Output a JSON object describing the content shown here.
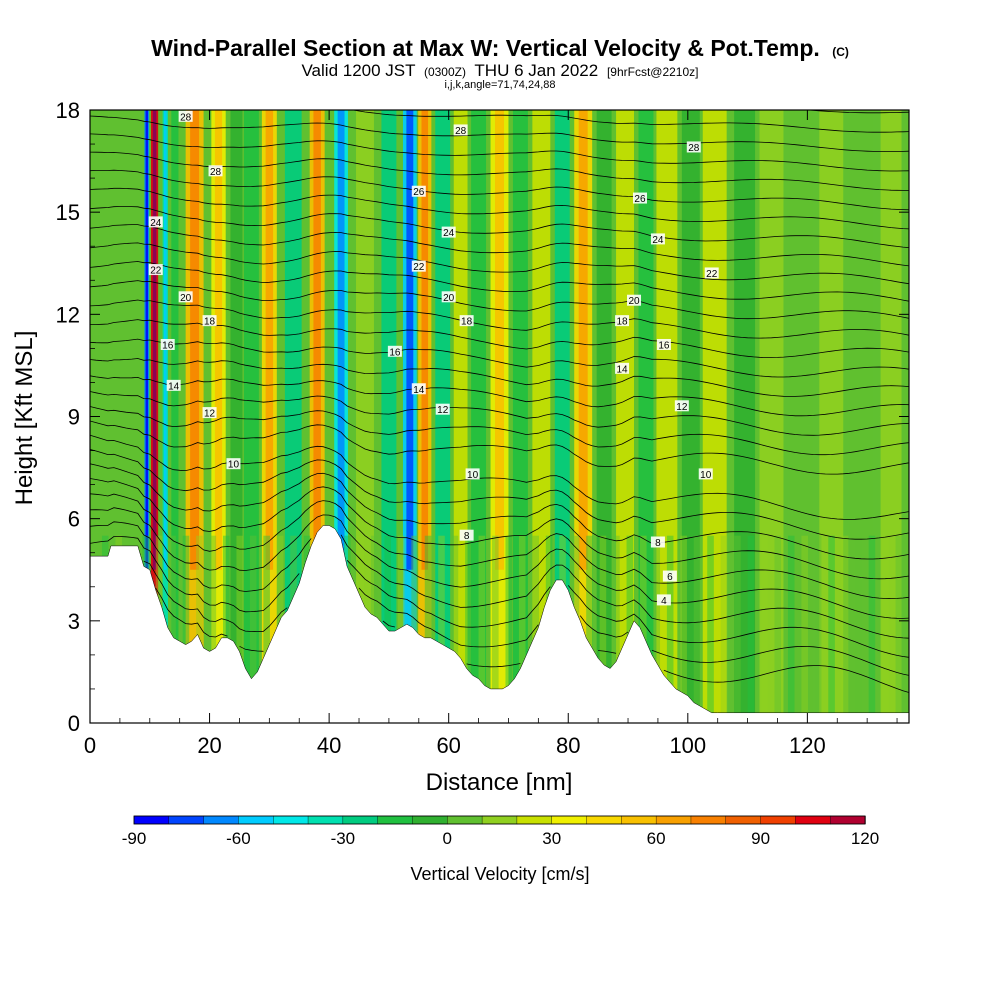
{
  "chart_data": {
    "type": "heatmap",
    "title": "Wind-Parallel Section at Max W: Vertical Velocity & Pot.Temp.",
    "title_suffix": "(C)",
    "subtitle_main": "Valid 1200 JST",
    "subtitle_utc": "(0300Z)",
    "subtitle_date": "THU 6 Jan 2022",
    "subtitle_fcst": "[9hrFcst@2210z]",
    "subtitle_line3": "i,j,k,angle=71,74,24,88",
    "xlabel": "Distance [nm]",
    "ylabel": "Height [Kft MSL]",
    "xlim": [
      0,
      137
    ],
    "ylim": [
      0,
      18
    ],
    "x_ticks": [
      0,
      20,
      40,
      60,
      80,
      100,
      120
    ],
    "x_tick_labels": [
      "0",
      "20",
      "40",
      "60",
      "80",
      "100",
      "120"
    ],
    "y_ticks": [
      0,
      3,
      6,
      9,
      12,
      15,
      18
    ],
    "y_tick_labels": [
      "0",
      "3",
      "6",
      "9",
      "12",
      "15",
      "18"
    ],
    "colorbar": {
      "title": "Vertical Velocity [cm/s]",
      "min": -90,
      "max": 120,
      "step": 10,
      "tick_values": [
        -90,
        -60,
        -30,
        0,
        30,
        60,
        90,
        120
      ],
      "tick_labels": [
        "-90",
        "-60",
        "-30",
        "0",
        "30",
        "60",
        "90",
        "120"
      ],
      "colors": [
        "#0000ff",
        "#0044ff",
        "#0088ff",
        "#00ccff",
        "#00e8e8",
        "#00e0b0",
        "#00cc80",
        "#20c040",
        "#30b030",
        "#60c030",
        "#90d020",
        "#c8e000",
        "#f0f000",
        "#f8d800",
        "#f8c000",
        "#f8a000",
        "#f88000",
        "#f06000",
        "#f04000",
        "#e00010",
        "#b00030",
        "#800060",
        "#500090"
      ]
    },
    "terrain_kft": [
      [
        0,
        4.9
      ],
      [
        3,
        4.9
      ],
      [
        3.5,
        5.2
      ],
      [
        8,
        5.2
      ],
      [
        9,
        4.6
      ],
      [
        10,
        4.5
      ],
      [
        11,
        3.9
      ],
      [
        12,
        3.4
      ],
      [
        13,
        2.8
      ],
      [
        14,
        2.5
      ],
      [
        15,
        2.4
      ],
      [
        16,
        2.3
      ],
      [
        17,
        2.4
      ],
      [
        18,
        2.6
      ],
      [
        19,
        2.2
      ],
      [
        20,
        2.1
      ],
      [
        21,
        2.2
      ],
      [
        22,
        2.5
      ],
      [
        23,
        2.5
      ],
      [
        24,
        2.4
      ],
      [
        25,
        2.1
      ],
      [
        26,
        1.6
      ],
      [
        27,
        1.3
      ],
      [
        28,
        1.5
      ],
      [
        29,
        1.9
      ],
      [
        30,
        2.3
      ],
      [
        31,
        2.7
      ],
      [
        32,
        3.1
      ],
      [
        33,
        3.3
      ],
      [
        34,
        3.7
      ],
      [
        35,
        4.1
      ],
      [
        36,
        4.7
      ],
      [
        37,
        5.2
      ],
      [
        38,
        5.6
      ],
      [
        39,
        5.8
      ],
      [
        40,
        5.8
      ],
      [
        41,
        5.7
      ],
      [
        42,
        5.4
      ],
      [
        43,
        4.6
      ],
      [
        44,
        4.2
      ],
      [
        45,
        3.8
      ],
      [
        46,
        3.4
      ],
      [
        47,
        3.2
      ],
      [
        48,
        3.1
      ],
      [
        49,
        2.9
      ],
      [
        50,
        2.7
      ],
      [
        51,
        2.7
      ],
      [
        52,
        2.8
      ],
      [
        53,
        2.9
      ],
      [
        54,
        2.8
      ],
      [
        55,
        2.6
      ],
      [
        56,
        2.5
      ],
      [
        57,
        2.5
      ],
      [
        58,
        2.4
      ],
      [
        59,
        2.3
      ],
      [
        60,
        2.2
      ],
      [
        61,
        2.1
      ],
      [
        62,
        1.9
      ],
      [
        63,
        1.6
      ],
      [
        64,
        1.4
      ],
      [
        65,
        1.3
      ],
      [
        66,
        1.1
      ],
      [
        67,
        1.0
      ],
      [
        68,
        1.0
      ],
      [
        69,
        1.0
      ],
      [
        70,
        1.1
      ],
      [
        71,
        1.3
      ],
      [
        72,
        1.6
      ],
      [
        73,
        2.0
      ],
      [
        74,
        2.4
      ],
      [
        75,
        2.8
      ],
      [
        76,
        3.4
      ],
      [
        77,
        3.9
      ],
      [
        78,
        4.2
      ],
      [
        79,
        4.2
      ],
      [
        80,
        3.9
      ],
      [
        81,
        3.4
      ],
      [
        82,
        3.0
      ],
      [
        83,
        2.5
      ],
      [
        84,
        2.2
      ],
      [
        85,
        1.9
      ],
      [
        86,
        1.7
      ],
      [
        87,
        1.6
      ],
      [
        88,
        1.8
      ],
      [
        89,
        2.2
      ],
      [
        90,
        2.6
      ],
      [
        91,
        3.0
      ],
      [
        92,
        2.8
      ],
      [
        93,
        2.4
      ],
      [
        94,
        2.0
      ],
      [
        95,
        1.7
      ],
      [
        96,
        1.4
      ],
      [
        97,
        1.2
      ],
      [
        98,
        1.0
      ],
      [
        99,
        0.9
      ],
      [
        100,
        0.8
      ],
      [
        101,
        0.6
      ],
      [
        102,
        0.5
      ],
      [
        103,
        0.4
      ],
      [
        104,
        0.3
      ],
      [
        105,
        0.3
      ],
      [
        137,
        0.3
      ]
    ],
    "wind_bands": [
      {
        "x": 9.5,
        "w": 0.8,
        "v": -70
      },
      {
        "x": 10.8,
        "w": 1.2,
        "v": 105
      },
      {
        "x": 12.6,
        "w": 0.9,
        "v": -40
      },
      {
        "x": 14.2,
        "w": 1.2,
        "v": -20
      },
      {
        "x": 17.5,
        "w": 3.0,
        "v": 55
      },
      {
        "x": 21.5,
        "w": 2.4,
        "v": 30
      },
      {
        "x": 24.5,
        "w": 2.0,
        "v": -10
      },
      {
        "x": 27.0,
        "w": 2.5,
        "v": -20
      },
      {
        "x": 30.0,
        "w": 2.5,
        "v": 40
      },
      {
        "x": 34.0,
        "w": 2.8,
        "v": -25
      },
      {
        "x": 38.0,
        "w": 2.5,
        "v": 50
      },
      {
        "x": 42.0,
        "w": 2.3,
        "v": -45
      },
      {
        "x": 46.0,
        "w": 3.0,
        "v": 10
      },
      {
        "x": 50.0,
        "w": 2.5,
        "v": -25
      },
      {
        "x": 53.5,
        "w": 2.3,
        "v": -60
      },
      {
        "x": 56.0,
        "w": 2.2,
        "v": 55
      },
      {
        "x": 59.0,
        "w": 2.5,
        "v": -25
      },
      {
        "x": 62.0,
        "w": 2.3,
        "v": 25
      },
      {
        "x": 65.0,
        "w": 2.5,
        "v": -20
      },
      {
        "x": 68.5,
        "w": 3.0,
        "v": 30
      },
      {
        "x": 72.0,
        "w": 2.5,
        "v": -15
      },
      {
        "x": 75.5,
        "w": 3.0,
        "v": 25
      },
      {
        "x": 79.0,
        "w": 2.5,
        "v": -25
      },
      {
        "x": 82.5,
        "w": 3.0,
        "v": 45
      },
      {
        "x": 86.0,
        "w": 2.5,
        "v": -10
      },
      {
        "x": 89.5,
        "w": 3.0,
        "v": 25
      },
      {
        "x": 93.0,
        "w": 2.5,
        "v": -20
      },
      {
        "x": 96.5,
        "w": 3.5,
        "v": 20
      },
      {
        "x": 100.5,
        "w": 3.0,
        "v": -10
      },
      {
        "x": 104.5,
        "w": 4.0,
        "v": 20
      },
      {
        "x": 109.5,
        "w": 3.5,
        "v": -10
      },
      {
        "x": 114.0,
        "w": 4.0,
        "v": 15
      },
      {
        "x": 119.0,
        "w": 4.0,
        "v": 5
      },
      {
        "x": 124.0,
        "w": 4.0,
        "v": 10
      },
      {
        "x": 129.0,
        "w": 4.0,
        "v": 5
      },
      {
        "x": 134.0,
        "w": 3.5,
        "v": 10
      }
    ],
    "pot_temp_labels": [
      {
        "text": "28",
        "x": 16,
        "y": 17.8
      },
      {
        "text": "28",
        "x": 21,
        "y": 16.2
      },
      {
        "text": "24",
        "x": 11,
        "y": 14.7
      },
      {
        "text": "22",
        "x": 11,
        "y": 13.3
      },
      {
        "text": "20",
        "x": 16,
        "y": 12.5
      },
      {
        "text": "18",
        "x": 20,
        "y": 11.8
      },
      {
        "text": "16",
        "x": 13,
        "y": 11.1
      },
      {
        "text": "14",
        "x": 14,
        "y": 9.9
      },
      {
        "text": "12",
        "x": 20,
        "y": 9.1
      },
      {
        "text": "10",
        "x": 24,
        "y": 7.6
      },
      {
        "text": "28",
        "x": 62,
        "y": 17.4
      },
      {
        "text": "26",
        "x": 55,
        "y": 15.6
      },
      {
        "text": "24",
        "x": 60,
        "y": 14.4
      },
      {
        "text": "22",
        "x": 55,
        "y": 13.4
      },
      {
        "text": "20",
        "x": 60,
        "y": 12.5
      },
      {
        "text": "18",
        "x": 63,
        "y": 11.8
      },
      {
        "text": "16",
        "x": 51,
        "y": 10.9
      },
      {
        "text": "14",
        "x": 55,
        "y": 9.8
      },
      {
        "text": "12",
        "x": 59,
        "y": 9.2
      },
      {
        "text": "10",
        "x": 64,
        "y": 7.3
      },
      {
        "text": "8",
        "x": 63,
        "y": 5.5
      },
      {
        "text": "28",
        "x": 101,
        "y": 16.9
      },
      {
        "text": "26",
        "x": 92,
        "y": 15.4
      },
      {
        "text": "24",
        "x": 95,
        "y": 14.2
      },
      {
        "text": "22",
        "x": 104,
        "y": 13.2
      },
      {
        "text": "20",
        "x": 91,
        "y": 12.4
      },
      {
        "text": "18",
        "x": 89,
        "y": 11.8
      },
      {
        "text": "16",
        "x": 96,
        "y": 11.1
      },
      {
        "text": "14",
        "x": 89,
        "y": 10.4
      },
      {
        "text": "12",
        "x": 99,
        "y": 9.3
      },
      {
        "text": "10",
        "x": 103,
        "y": 7.3
      },
      {
        "text": "8",
        "x": 95,
        "y": 5.3
      },
      {
        "text": "6",
        "x": 97,
        "y": 4.3
      },
      {
        "text": "4",
        "x": 96,
        "y": 3.6
      }
    ]
  }
}
